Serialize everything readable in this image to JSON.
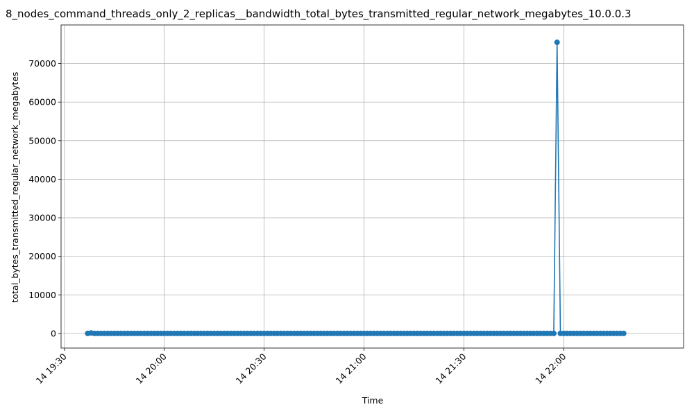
{
  "chart_data": {
    "type": "line",
    "title": "8_nodes_command_threads_only_2_replicas__bandwidth_total_bytes_transmitted_regular_network_megabytes_10.0.0.3",
    "xlabel": "Time",
    "ylabel": "total_bytes_transmitted_regular_network_megabytes",
    "x_start": "19:37",
    "x_end": "22:18",
    "x_ticks": [
      {
        "time": "19:30",
        "label": "14 19:30"
      },
      {
        "time": "20:00",
        "label": "14 20:00"
      },
      {
        "time": "20:30",
        "label": "14 20:30"
      },
      {
        "time": "21:00",
        "label": "14 21:00"
      },
      {
        "time": "21:30",
        "label": "14 21:30"
      },
      {
        "time": "22:00",
        "label": "14 22:00"
      }
    ],
    "y_ticks": [
      0,
      10000,
      20000,
      30000,
      40000,
      50000,
      60000,
      70000
    ],
    "ylim": [
      -3800,
      80000
    ],
    "xlim": [
      "19:29",
      "22:36"
    ],
    "grid": true,
    "series": [
      {
        "color": "#1f77b4",
        "marker": "circle",
        "baseline_value": 0,
        "first_point": {
          "time": "19:37",
          "value": 0
        },
        "second_point": {
          "time": "19:38",
          "value": 120
        },
        "spike_point": {
          "time": "21:58",
          "value": 75500
        }
      }
    ]
  }
}
